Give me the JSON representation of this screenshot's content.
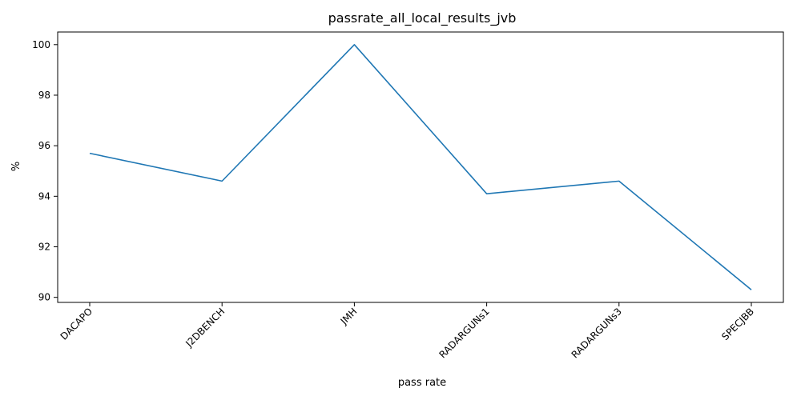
{
  "chart_data": {
    "type": "line",
    "title": "passrate_all_local_results_jvb",
    "xlabel": "pass rate",
    "ylabel": "%",
    "categories": [
      "DACAPO",
      "J2DBENCH",
      "JMH",
      "RADARGUNs1",
      "RADARGUNs3",
      "SPECJBB"
    ],
    "series": [
      {
        "values": [
          95.7,
          94.6,
          100.0,
          94.1,
          94.6,
          90.3
        ],
        "color": "#1f77b4"
      }
    ],
    "ylim": [
      89.8,
      100.5
    ],
    "yticks": [
      90,
      92,
      94,
      96,
      98,
      100
    ],
    "grid": false,
    "legend": "none"
  }
}
